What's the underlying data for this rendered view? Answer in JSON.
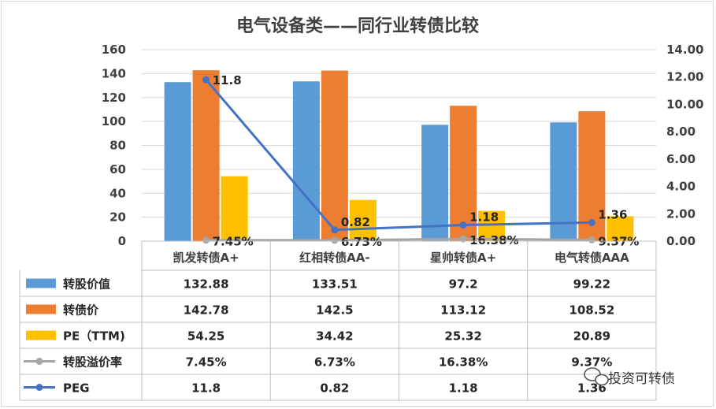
{
  "chart_data": {
    "type": "bar",
    "title": "电气设备类——同行业转债比较",
    "categories": [
      "凯发转债A+",
      "红相转债AA-",
      "星帅转债A+",
      "电气转债AAA"
    ],
    "series": [
      {
        "name": "转股价值",
        "type": "bar",
        "axis": "left",
        "color": "#5b9bd5",
        "values": [
          132.88,
          133.51,
          97.2,
          99.22
        ],
        "labels": [
          "132.88",
          "133.51",
          "97.2",
          "99.22"
        ]
      },
      {
        "name": "转债价",
        "type": "bar",
        "axis": "left",
        "color": "#ed7d31",
        "values": [
          142.78,
          142.5,
          113.12,
          108.52
        ],
        "labels": [
          "142.78",
          "142.5",
          "113.12",
          "108.52"
        ]
      },
      {
        "name": "PE（TTM)",
        "type": "bar",
        "axis": "left",
        "color": "#ffc000",
        "values": [
          54.25,
          34.42,
          25.32,
          20.89
        ],
        "labels": [
          "54.25",
          "34.42",
          "25.32",
          "20.89"
        ]
      },
      {
        "name": "转股溢价率",
        "type": "line",
        "axis": "right",
        "color": "#a5a5a5",
        "values": [
          0.0745,
          0.0673,
          0.1638,
          0.0937
        ],
        "labels": [
          "7.45%",
          "6.73%",
          "16.38%",
          "9.37%"
        ]
      },
      {
        "name": "PEG",
        "type": "line",
        "axis": "right",
        "color": "#4472c4",
        "values": [
          11.8,
          0.82,
          1.18,
          1.36
        ],
        "labels": [
          "11.8",
          "0.82",
          "1.18",
          "1.36"
        ]
      }
    ],
    "y_left": {
      "min": 0,
      "max": 160,
      "step": 20,
      "ticks": [
        "0",
        "20",
        "40",
        "60",
        "80",
        "100",
        "120",
        "140",
        "160"
      ]
    },
    "y_right": {
      "min": 0,
      "max": 14,
      "step": 2,
      "ticks": [
        "0.00",
        "2.00",
        "4.00",
        "6.00",
        "8.00",
        "10.00",
        "12.00",
        "14.00"
      ]
    },
    "grid": true,
    "data_table": true,
    "legend": "in data table"
  },
  "watermark": {
    "text": "投资可转债",
    "icon": "wechat-icon"
  }
}
